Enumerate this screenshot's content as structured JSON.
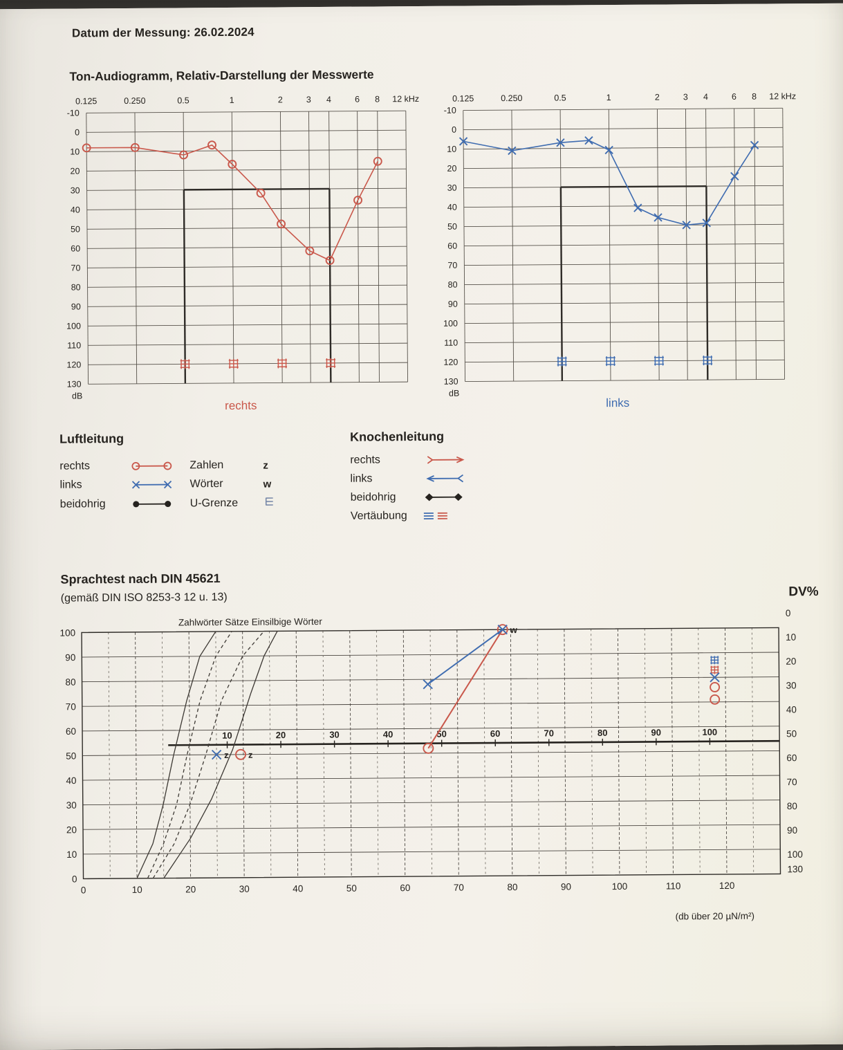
{
  "colors": {
    "red": "#c9584b",
    "blue": "#3f6cb0",
    "ink": "#26231f",
    "paper": "#f2efe8"
  },
  "header": {
    "date_line": "Datum der Messung: 26.02.2024"
  },
  "tone_section": {
    "title": "Ton-Audiogramm, Relativ-Darstellung der Messwerte",
    "right_caption": "rechts",
    "left_caption": "links"
  },
  "legend": {
    "air": {
      "title": "Luftleitung",
      "rows": [
        {
          "label": "rechts",
          "col2": "Zahlen",
          "sym": "z"
        },
        {
          "label": "links",
          "col2": "Wörter",
          "sym": "w"
        },
        {
          "label": "beidohrig",
          "col2": "U-Grenze",
          "sym": ""
        }
      ]
    },
    "bone": {
      "title": "Knochenleitung",
      "rows": [
        {
          "label": "rechts"
        },
        {
          "label": "links"
        },
        {
          "label": "beidohrig"
        },
        {
          "label": "Vertäubung"
        }
      ]
    }
  },
  "speech_section": {
    "title": "Sprachtest nach DIN 45621",
    "subtitle": "(gemäß DIN ISO 8253-3 12 u. 13)",
    "dv_label": "DV%",
    "unit_note": "(db über 20 µN/m²)"
  },
  "chart_data": [
    {
      "type": "line",
      "title": "Ton-Audiogramm rechts",
      "x_unit": "kHz",
      "y_unit": "dB",
      "x_ticks": [
        "0.125",
        "0.250",
        "0.5",
        "1",
        "2",
        "3",
        "4",
        "6",
        "8",
        "12 kHz"
      ],
      "x_tick_freqs": [
        0.125,
        0.25,
        0.5,
        1,
        2,
        3,
        4,
        6,
        8,
        12
      ],
      "ylim": [
        -10,
        130
      ],
      "marker": "circle",
      "color_key": "red",
      "points": [
        [
          0.125,
          8
        ],
        [
          0.25,
          8
        ],
        [
          0.5,
          12
        ],
        [
          0.75,
          7
        ],
        [
          1,
          17
        ],
        [
          1.5,
          32
        ],
        [
          2,
          48
        ],
        [
          3,
          62
        ],
        [
          4,
          67
        ],
        [
          6,
          36
        ],
        [
          8,
          16
        ]
      ],
      "masking_at_db": 120,
      "masking_freqs": [
        0.5,
        1,
        2,
        4
      ],
      "emphasis_box": {
        "freq_from": 0.5,
        "freq_to": 4,
        "db_from": 30,
        "db_to": 130
      }
    },
    {
      "type": "line",
      "title": "Ton-Audiogramm links",
      "x_unit": "kHz",
      "y_unit": "dB",
      "x_ticks": [
        "0.125",
        "0.250",
        "0.5",
        "1",
        "2",
        "3",
        "4",
        "6",
        "8",
        "12 kHz"
      ],
      "x_tick_freqs": [
        0.125,
        0.25,
        0.5,
        1,
        2,
        3,
        4,
        6,
        8,
        12
      ],
      "ylim": [
        -10,
        130
      ],
      "marker": "x",
      "color_key": "blue",
      "points": [
        [
          0.125,
          6
        ],
        [
          0.25,
          11
        ],
        [
          0.5,
          7
        ],
        [
          0.75,
          6
        ],
        [
          1,
          11
        ],
        [
          1.5,
          41
        ],
        [
          2,
          46
        ],
        [
          3,
          50
        ],
        [
          4,
          49
        ],
        [
          6,
          25
        ],
        [
          8,
          9
        ]
      ],
      "masking_at_db": 120,
      "masking_freqs": [
        0.5,
        1,
        2,
        4
      ],
      "emphasis_box": {
        "freq_from": 0.5,
        "freq_to": 4,
        "db_from": 30,
        "db_to": 130
      }
    },
    {
      "type": "line",
      "title": "Sprachaudiogramm DIN 45621",
      "curve_label": "Zahlwörter Sätze Einsilbige Wörter",
      "xlim": [
        0,
        130
      ],
      "ylim": [
        0,
        100
      ],
      "x_ticks": [
        0,
        10,
        20,
        30,
        40,
        50,
        60,
        70,
        80,
        90,
        100,
        110,
        120
      ],
      "left_ticks": [
        0,
        10,
        20,
        30,
        40,
        50,
        60,
        70,
        80,
        90,
        100
      ],
      "dv_ticks": [
        0,
        10,
        20,
        30,
        40,
        50,
        60,
        70,
        80,
        90,
        100
      ],
      "dv_extra": "130",
      "inner_scale": {
        "ticks": [
          10,
          20,
          30,
          40,
          50,
          60,
          70,
          80,
          90,
          100
        ],
        "offset_db": 17,
        "line_pct": 54
      },
      "ref_curves": [
        {
          "dashed": false,
          "points": [
            [
              10,
              0
            ],
            [
              13,
              14
            ],
            [
              15,
              30
            ],
            [
              17,
              50
            ],
            [
              19.5,
              72
            ],
            [
              22,
              90
            ],
            [
              25,
              100
            ]
          ]
        },
        {
          "dashed": true,
          "points": [
            [
              12,
              0
            ],
            [
              15,
              14
            ],
            [
              17.5,
              30
            ],
            [
              19.5,
              50
            ],
            [
              22,
              72
            ],
            [
              25,
              90
            ],
            [
              28,
              100
            ]
          ]
        },
        {
          "dashed": true,
          "points": [
            [
              13,
              0
            ],
            [
              17,
              14
            ],
            [
              20,
              30
            ],
            [
              23,
              50
            ],
            [
              26,
              72
            ],
            [
              30,
              90
            ],
            [
              34,
              100
            ]
          ]
        },
        {
          "dashed": false,
          "points": [
            [
              15,
              0
            ],
            [
              20,
              16
            ],
            [
              24,
              32
            ],
            [
              28,
              52
            ],
            [
              31.5,
              75
            ],
            [
              34,
              90
            ],
            [
              36.5,
              100
            ]
          ]
        }
      ],
      "series": [
        {
          "name": "zahlen-links",
          "marker": "x",
          "color_key": "blue",
          "label": "z",
          "points": [
            [
              25,
              50
            ]
          ]
        },
        {
          "name": "zahlen-rechts",
          "marker": "circle",
          "color_key": "red",
          "label": "z",
          "points": [
            [
              29.5,
              50
            ]
          ]
        },
        {
          "name": "woerter-rechts",
          "marker": "circle",
          "color_key": "red",
          "label": "",
          "points": [
            [
              64.5,
              52
            ],
            [
              78.5,
              100
            ]
          ]
        },
        {
          "name": "woerter-links",
          "marker": "x",
          "color_key": "blue",
          "label": "w",
          "points": [
            [
              64.5,
              78
            ],
            [
              78.5,
              100
            ]
          ]
        }
      ],
      "limit_markers": [
        {
          "marker": "masking",
          "color_key": "blue",
          "db": 118,
          "pct": 87
        },
        {
          "marker": "masking",
          "color_key": "red",
          "db": 118,
          "pct": 83
        },
        {
          "marker": "x",
          "color_key": "blue",
          "db": 118,
          "pct": 80
        },
        {
          "marker": "circle",
          "color_key": "red",
          "db": 118,
          "pct": 76
        },
        {
          "marker": "circle",
          "color_key": "red",
          "db": 118,
          "pct": 71
        }
      ]
    }
  ]
}
